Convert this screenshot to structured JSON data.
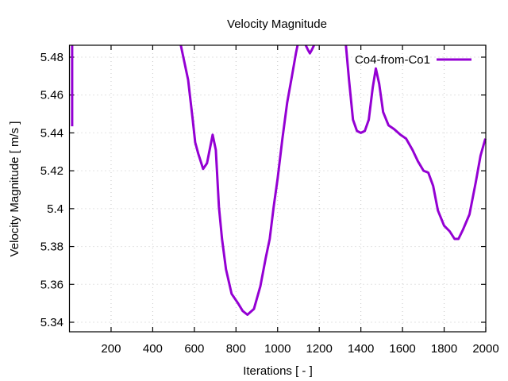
{
  "chart_data": {
    "type": "line",
    "title": "Velocity Magnitude",
    "xlabel": "Iterations [ - ]",
    "ylabel": "Velocity Magnitude [ m/s ]",
    "xlim": [
      0,
      2000
    ],
    "ylim": [
      5.3355,
      5.4865
    ],
    "grid": true,
    "legend_position": "top-right",
    "x_ticks": [
      200,
      400,
      600,
      800,
      1000,
      1200,
      1400,
      1600,
      1800,
      2000
    ],
    "x_tick_labels": [
      "200",
      "400",
      "600",
      "800",
      "1000",
      "1200",
      "1400",
      "1600",
      "1800",
      "2000"
    ],
    "y_ticks": [
      5.34,
      5.36,
      5.38,
      5.4,
      5.42,
      5.44,
      5.46,
      5.48
    ],
    "y_tick_labels": [
      "5.34",
      "5.36",
      "5.38",
      "5.4",
      "5.42",
      "5.44",
      "5.46",
      "5.48"
    ],
    "series": [
      {
        "name": "Co4-from-Co1",
        "color": "#9400d3",
        "segments": [
          {
            "x": [
              13,
              13
            ],
            "y": [
              5.4865,
              5.4435
            ]
          },
          {
            "x": [
              535,
              570,
              592,
              604,
              619,
              642,
              661,
              688,
              703,
              718,
              733,
              752,
              779,
              810,
              832,
              855,
              886,
              917,
              943,
              962,
              981,
              1000,
              1023,
              1046,
              1069,
              1088,
              1096
            ],
            "y": [
              5.4865,
              5.468,
              5.447,
              5.435,
              5.429,
              5.421,
              5.424,
              5.439,
              5.431,
              5.401,
              5.384,
              5.368,
              5.355,
              5.35,
              5.346,
              5.344,
              5.347,
              5.359,
              5.374,
              5.384,
              5.401,
              5.416,
              5.437,
              5.456,
              5.47,
              5.482,
              5.4865
            ]
          },
          {
            "x": [
              1135,
              1145,
              1155,
              1165,
              1175
            ],
            "y": [
              5.4865,
              5.484,
              5.482,
              5.484,
              5.4865
            ]
          },
          {
            "x": [
              1328,
              1343,
              1362,
              1381,
              1400,
              1419,
              1438,
              1457,
              1472,
              1488,
              1507,
              1533,
              1560,
              1590,
              1617,
              1648,
              1674,
              1701,
              1724,
              1747,
              1770,
              1800,
              1827,
              1850,
              1869,
              1891,
              1922,
              1952,
              1975,
              1998
            ],
            "y": [
              5.4865,
              5.468,
              5.447,
              5.441,
              5.44,
              5.441,
              5.447,
              5.464,
              5.474,
              5.466,
              5.451,
              5.444,
              5.442,
              5.439,
              5.437,
              5.431,
              5.425,
              5.42,
              5.419,
              5.412,
              5.399,
              5.391,
              5.388,
              5.384,
              5.384,
              5.389,
              5.397,
              5.414,
              5.428,
              5.437
            ]
          }
        ]
      }
    ]
  }
}
